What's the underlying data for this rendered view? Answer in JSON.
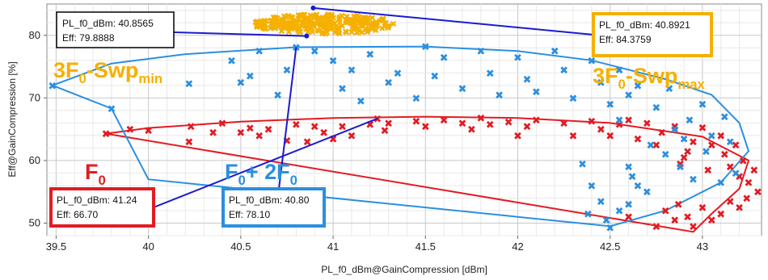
{
  "chart_data": {
    "type": "scatter",
    "xlabel": "PL_f0_dBm@GainCompression [dBm]",
    "ylabel": "Eff@GainCompression [%]",
    "xlim": [
      39.45,
      43.32
    ],
    "ylim": [
      48,
      85
    ],
    "xticks": [
      "39.5",
      "40",
      "40.5",
      "41",
      "41.5",
      "42",
      "42.5",
      "43"
    ],
    "yticks": [
      "50",
      "60",
      "70",
      "80"
    ],
    "grid": true,
    "colors": {
      "red": "#e31b23",
      "blue": "#2b8fe0",
      "orange": "#f5b000",
      "connector": "#1a1ad0",
      "box_black": "#000000"
    },
    "series": [
      {
        "name": "F0",
        "color": "#e31b23",
        "line": [
          [
            39.77,
            64.3
          ],
          [
            40.0,
            65.2
          ],
          [
            40.5,
            66.2
          ],
          [
            41.0,
            66.8
          ],
          [
            41.5,
            67.0
          ],
          [
            42.0,
            66.8
          ],
          [
            42.5,
            66.0
          ],
          [
            43.0,
            63.8
          ],
          [
            43.25,
            60.0
          ],
          [
            43.2,
            55.5
          ],
          [
            43.05,
            51.5
          ],
          [
            42.95,
            48.6
          ],
          [
            39.77,
            64.3
          ]
        ],
        "points": [
          [
            39.77,
            64.3
          ],
          [
            39.9,
            65.0
          ],
          [
            40.0,
            64.8
          ],
          [
            40.23,
            65.5
          ],
          [
            40.22,
            63.0
          ],
          [
            40.35,
            64.5
          ],
          [
            40.4,
            66.0
          ],
          [
            40.5,
            64.5
          ],
          [
            40.55,
            65.2
          ],
          [
            40.6,
            64.0
          ],
          [
            40.65,
            65.0
          ],
          [
            40.75,
            63.2
          ],
          [
            40.8,
            65.8
          ],
          [
            40.86,
            63.0
          ],
          [
            40.9,
            65.5
          ],
          [
            40.95,
            64.5
          ],
          [
            41.0,
            63.5
          ],
          [
            41.05,
            65.5
          ],
          [
            41.1,
            64.0
          ],
          [
            41.2,
            65.8
          ],
          [
            41.24,
            66.7
          ],
          [
            41.28,
            64.8
          ],
          [
            41.3,
            66.0
          ],
          [
            41.45,
            66.3
          ],
          [
            41.5,
            65.5
          ],
          [
            41.6,
            66.5
          ],
          [
            41.7,
            66.0
          ],
          [
            41.75,
            65.0
          ],
          [
            41.8,
            66.8
          ],
          [
            41.85,
            65.8
          ],
          [
            41.95,
            66.2
          ],
          [
            42.0,
            64.0
          ],
          [
            42.05,
            65.5
          ],
          [
            42.1,
            66.5
          ],
          [
            42.25,
            66.0
          ],
          [
            42.3,
            64.0
          ],
          [
            42.4,
            66.3
          ],
          [
            42.45,
            65.0
          ],
          [
            42.5,
            64.0
          ],
          [
            42.55,
            65.8
          ],
          [
            42.6,
            66.5
          ],
          [
            42.65,
            63.5
          ],
          [
            42.7,
            66.0
          ],
          [
            42.75,
            62.5
          ],
          [
            42.78,
            64.5
          ],
          [
            42.85,
            65.5
          ],
          [
            42.88,
            59.5
          ],
          [
            42.9,
            60.5
          ],
          [
            42.92,
            61.5
          ],
          [
            42.95,
            63.0
          ],
          [
            43.0,
            65.3
          ],
          [
            43.03,
            58.5
          ],
          [
            43.05,
            62.5
          ],
          [
            43.1,
            64.0
          ],
          [
            43.12,
            61.0
          ],
          [
            43.15,
            59.0
          ],
          [
            43.18,
            62.5
          ],
          [
            43.2,
            57.5
          ],
          [
            43.22,
            60.0
          ],
          [
            43.25,
            56.5
          ],
          [
            43.28,
            58.5
          ],
          [
            43.3,
            55.0
          ],
          [
            43.24,
            54.0
          ],
          [
            43.2,
            52.5
          ],
          [
            43.15,
            53.5
          ],
          [
            43.1,
            51.5
          ],
          [
            43.05,
            50.5
          ],
          [
            43.0,
            52.5
          ],
          [
            42.95,
            49.5
          ],
          [
            42.92,
            51.0
          ],
          [
            42.87,
            53.0
          ],
          [
            42.85,
            50.5
          ],
          [
            42.8,
            52.0
          ],
          [
            42.75,
            49.5
          ],
          [
            42.6,
            51.0
          ]
        ]
      },
      {
        "name": "F0+2F0",
        "color": "#2b8fe0",
        "line": [
          [
            39.48,
            72.0
          ],
          [
            39.8,
            75.5
          ],
          [
            40.2,
            77.0
          ],
          [
            40.8,
            78.1
          ],
          [
            41.5,
            78.2
          ],
          [
            42.0,
            77.5
          ],
          [
            42.4,
            76.0
          ],
          [
            42.8,
            73.0
          ],
          [
            43.05,
            70.5
          ],
          [
            43.2,
            66.0
          ],
          [
            43.25,
            61.5
          ],
          [
            43.1,
            56.5
          ],
          [
            42.8,
            52.0
          ],
          [
            42.5,
            49.5
          ],
          [
            40.0,
            57.0
          ],
          [
            39.8,
            68.3
          ],
          [
            39.48,
            72.0
          ]
        ],
        "points": [
          [
            39.48,
            72.0
          ],
          [
            39.8,
            68.3
          ],
          [
            40.22,
            72.3
          ],
          [
            40.45,
            76.0
          ],
          [
            40.5,
            72.5
          ],
          [
            40.55,
            73.5
          ],
          [
            40.6,
            77.5
          ],
          [
            40.7,
            70.5
          ],
          [
            40.75,
            74.5
          ],
          [
            40.8,
            78.1
          ],
          [
            40.9,
            77.5
          ],
          [
            41.0,
            76.0
          ],
          [
            41.05,
            71.5
          ],
          [
            41.1,
            74.5
          ],
          [
            41.15,
            69.5
          ],
          [
            41.2,
            77.0
          ],
          [
            41.3,
            72.5
          ],
          [
            41.35,
            74.0
          ],
          [
            41.45,
            70.0
          ],
          [
            41.5,
            78.2
          ],
          [
            41.55,
            73.5
          ],
          [
            41.6,
            76.5
          ],
          [
            41.7,
            71.5
          ],
          [
            41.8,
            77.5
          ],
          [
            41.85,
            74.0
          ],
          [
            41.9,
            70.5
          ],
          [
            42.0,
            76.5
          ],
          [
            42.05,
            73.0
          ],
          [
            42.1,
            71.0
          ],
          [
            42.2,
            77.5
          ],
          [
            42.25,
            74.5
          ],
          [
            42.3,
            70.0
          ],
          [
            42.4,
            76.0
          ],
          [
            42.45,
            72.5
          ],
          [
            42.5,
            69.0
          ],
          [
            42.55,
            66.5
          ],
          [
            42.55,
            74.5
          ],
          [
            42.6,
            70.5
          ],
          [
            42.62,
            57.5
          ],
          [
            42.65,
            72.0
          ],
          [
            42.7,
            55.0
          ],
          [
            42.72,
            62.5
          ],
          [
            42.75,
            68.5
          ],
          [
            42.8,
            61.0
          ],
          [
            42.82,
            71.5
          ],
          [
            42.85,
            65.0
          ],
          [
            42.88,
            59.0
          ],
          [
            42.9,
            63.5
          ],
          [
            42.93,
            66.5
          ],
          [
            42.95,
            57.0
          ],
          [
            43.0,
            69.0
          ],
          [
            43.02,
            61.5
          ],
          [
            43.05,
            64.0
          ],
          [
            43.1,
            56.5
          ],
          [
            43.12,
            67.0
          ],
          [
            43.15,
            63.0
          ],
          [
            43.18,
            58.0
          ],
          [
            42.45,
            53.5
          ],
          [
            42.4,
            56.0
          ],
          [
            42.38,
            51.5
          ],
          [
            42.48,
            50.5
          ],
          [
            42.55,
            52.0
          ],
          [
            42.5,
            49.3
          ],
          [
            42.6,
            53.0
          ],
          [
            42.65,
            56.0
          ],
          [
            42.35,
            59.5
          ],
          [
            42.6,
            59.0
          ]
        ]
      },
      {
        "name": "3F0-Swp",
        "color": "#f5b000",
        "cluster_center": [
          40.95,
          81.8
        ],
        "cluster_spread": [
          0.38,
          1.6
        ],
        "marked_min": [
          40.8565,
          79.8888
        ],
        "marked_max": [
          40.8921,
          84.3759
        ]
      }
    ],
    "annotations": [
      {
        "label": "PL_f0_dBm: 40.8565",
        "label2": "Eff: 79.8888",
        "color": "#000000",
        "anchor": [
          40.8565,
          79.8888
        ]
      },
      {
        "label": "PL_f0_dBm: 40.8921",
        "label2": "Eff: 84.3759",
        "color": "#f5b000",
        "anchor": [
          40.8921,
          84.3759
        ]
      },
      {
        "label": "PL_f0_dBm: 41.24",
        "label2": "Eff: 66.70",
        "color": "#e31b23",
        "anchor": [
          41.24,
          66.7
        ]
      },
      {
        "label": "PL_f0_dBm: 40.80",
        "label2": "Eff: 78.10",
        "color": "#2b8fe0",
        "anchor": [
          40.8,
          78.1
        ]
      }
    ],
    "big_labels": {
      "swp_min": {
        "main": "3F",
        "sub1": "0",
        "mid": "-Swp",
        "sub2": "min",
        "color": "#f5b000"
      },
      "swp_max": {
        "main": "3F",
        "sub1": "0",
        "mid": "-Swp",
        "sub2": "max",
        "color": "#f5b000"
      },
      "f0": {
        "main": "F",
        "sub1": "0",
        "color": "#e31b23"
      },
      "f0_2f0": {
        "main": "F",
        "sub1": "0",
        "mid": "+ 2F",
        "sub2": "0",
        "color": "#2b8fe0"
      }
    }
  }
}
